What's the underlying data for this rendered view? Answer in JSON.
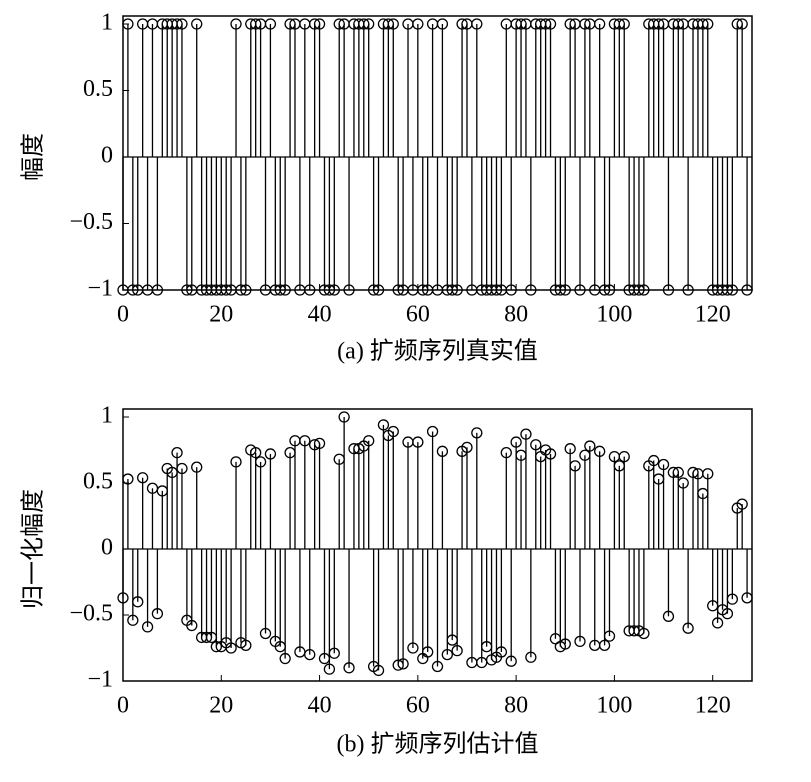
{
  "chart_data": [
    {
      "type": "stem",
      "xlabel": "(a) 扩频序列真实值",
      "ylabel": "幅度",
      "color": "#000000",
      "x": [
        0,
        1,
        2,
        3,
        4,
        5,
        6,
        7,
        8,
        9,
        10,
        11,
        12,
        13,
        14,
        15,
        16,
        17,
        18,
        19,
        20,
        21,
        22,
        23,
        24,
        25,
        26,
        27,
        28,
        29,
        30,
        31,
        32,
        33,
        34,
        35,
        36,
        37,
        38,
        39,
        40,
        41,
        42,
        43,
        44,
        45,
        46,
        47,
        48,
        49,
        50,
        51,
        52,
        53,
        54,
        55,
        56,
        57,
        58,
        59,
        60,
        61,
        62,
        63,
        64,
        65,
        66,
        67,
        68,
        69,
        70,
        71,
        72,
        73,
        74,
        75,
        76,
        77,
        78,
        79,
        80,
        81,
        82,
        83,
        84,
        85,
        86,
        87,
        88,
        89,
        90,
        91,
        92,
        93,
        94,
        95,
        96,
        97,
        98,
        99,
        100,
        101,
        102,
        103,
        104,
        105,
        106,
        107,
        108,
        109,
        110,
        111,
        112,
        113,
        114,
        115,
        116,
        117,
        118,
        119,
        120,
        121,
        122,
        123,
        124,
        125,
        126,
        127
      ],
      "values": [
        -1,
        1,
        -1,
        -1,
        1,
        -1,
        1,
        -1,
        1,
        1,
        1,
        1,
        1,
        -1,
        -1,
        1,
        -1,
        -1,
        -1,
        -1,
        -1,
        -1,
        -1,
        1,
        -1,
        -1,
        1,
        1,
        1,
        -1,
        1,
        -1,
        -1,
        -1,
        1,
        1,
        -1,
        1,
        -1,
        1,
        1,
        -1,
        -1,
        -1,
        1,
        1,
        -1,
        1,
        1,
        1,
        1,
        -1,
        -1,
        1,
        1,
        1,
        -1,
        -1,
        1,
        -1,
        1,
        -1,
        -1,
        1,
        -1,
        1,
        -1,
        -1,
        -1,
        1,
        1,
        -1,
        1,
        -1,
        -1,
        -1,
        -1,
        -1,
        1,
        -1,
        1,
        1,
        1,
        -1,
        1,
        1,
        1,
        1,
        -1,
        -1,
        -1,
        1,
        1,
        -1,
        1,
        1,
        -1,
        1,
        -1,
        -1,
        1,
        1,
        1,
        -1,
        -1,
        -1,
        -1,
        1,
        1,
        1,
        1,
        -1,
        1,
        1,
        1,
        -1,
        1,
        1,
        1,
        1,
        -1,
        -1,
        -1,
        -1,
        -1,
        1,
        1,
        -1
      ],
      "xlim": [
        0,
        128
      ],
      "xticks": [
        0,
        20,
        40,
        60,
        80,
        100,
        120
      ],
      "ylim": [
        -1,
        1
      ],
      "yticks": [
        {
          "value": -1,
          "label": "−1"
        },
        {
          "value": -0.5,
          "label": "−0.5"
        },
        0,
        0.5,
        1
      ]
    },
    {
      "type": "stem",
      "xlabel": "(b) 扩频序列估计值",
      "ylabel": "归一化幅度",
      "color": "#000000",
      "x": [
        0,
        1,
        2,
        3,
        4,
        5,
        6,
        7,
        8,
        9,
        10,
        11,
        12,
        13,
        14,
        15,
        16,
        17,
        18,
        19,
        20,
        21,
        22,
        23,
        24,
        25,
        26,
        27,
        28,
        29,
        30,
        31,
        32,
        33,
        34,
        35,
        36,
        37,
        38,
        39,
        40,
        41,
        42,
        43,
        44,
        45,
        46,
        47,
        48,
        49,
        50,
        51,
        52,
        53,
        54,
        55,
        56,
        57,
        58,
        59,
        60,
        61,
        62,
        63,
        64,
        65,
        66,
        67,
        68,
        69,
        70,
        71,
        72,
        73,
        74,
        75,
        76,
        77,
        78,
        79,
        80,
        81,
        82,
        83,
        84,
        85,
        86,
        87,
        88,
        89,
        90,
        91,
        92,
        93,
        94,
        95,
        96,
        97,
        98,
        99,
        100,
        101,
        102,
        103,
        104,
        105,
        106,
        107,
        108,
        109,
        110,
        111,
        112,
        113,
        114,
        115,
        116,
        117,
        118,
        119,
        120,
        121,
        122,
        123,
        124,
        125,
        126,
        127
      ],
      "values": [
        -0.37,
        0.53,
        -0.54,
        -0.4,
        0.54,
        -0.59,
        0.46,
        -0.49,
        0.44,
        0.61,
        0.58,
        0.73,
        0.61,
        -0.54,
        -0.58,
        0.62,
        -0.67,
        -0.67,
        -0.67,
        -0.74,
        -0.74,
        -0.71,
        -0.75,
        0.66,
        -0.71,
        -0.73,
        0.75,
        0.73,
        0.66,
        -0.64,
        0.72,
        -0.7,
        -0.74,
        -0.83,
        0.73,
        0.82,
        -0.78,
        0.82,
        -0.8,
        0.79,
        0.8,
        -0.83,
        -0.91,
        -0.79,
        0.68,
        1.0,
        -0.9,
        0.76,
        0.76,
        0.78,
        0.82,
        -0.89,
        -0.92,
        0.94,
        0.86,
        0.89,
        -0.88,
        -0.87,
        0.81,
        -0.75,
        0.81,
        -0.83,
        -0.78,
        0.89,
        -0.89,
        0.74,
        -0.8,
        -0.69,
        -0.77,
        0.74,
        0.77,
        -0.86,
        0.88,
        -0.86,
        -0.74,
        -0.84,
        -0.82,
        -0.78,
        0.73,
        -0.85,
        0.81,
        0.71,
        0.87,
        -0.82,
        0.79,
        0.7,
        0.75,
        0.72,
        -0.68,
        -0.74,
        -0.72,
        0.76,
        0.63,
        -0.7,
        0.71,
        0.78,
        -0.73,
        0.74,
        -0.73,
        -0.66,
        0.7,
        0.63,
        0.7,
        -0.62,
        -0.62,
        -0.62,
        -0.64,
        0.63,
        0.67,
        0.53,
        0.64,
        -0.51,
        0.58,
        0.58,
        0.5,
        -0.6,
        0.58,
        0.57,
        0.42,
        0.57,
        -0.43,
        -0.56,
        -0.46,
        -0.49,
        -0.38,
        0.31,
        0.34,
        -0.37
      ],
      "xlim": [
        0,
        128
      ],
      "xticks": [
        0,
        20,
        40,
        60,
        80,
        100,
        120
      ],
      "ylim": [
        -1,
        1
      ],
      "yticks": [
        {
          "value": -1,
          "label": "−1"
        },
        {
          "value": -0.5,
          "label": "−0.5"
        },
        0,
        0.5,
        1
      ]
    }
  ]
}
